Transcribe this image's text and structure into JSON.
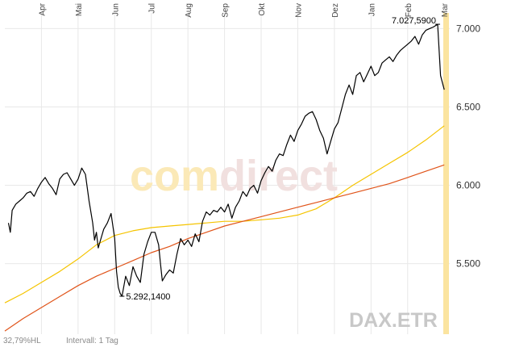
{
  "chart_data": {
    "type": "line",
    "symbol": "DAX.ETR",
    "watermark_parts": [
      "com",
      "direct"
    ],
    "footer_left": "32,79%HL",
    "footer_interval": "Intervall: 1 Tag",
    "ylim": [
      5050,
      7100
    ],
    "y_ticks": [
      "7.000",
      "6.500",
      "6.000",
      "5.500"
    ],
    "y_tick_values": [
      7000,
      6500,
      6000,
      5500
    ],
    "x_range": [
      0,
      12.15
    ],
    "months": [
      "Apr",
      "Mai",
      "Jun",
      "Jul",
      "Aug",
      "Sep",
      "Okt",
      "Nov",
      "Dez",
      "Jan",
      "Feb",
      "Mar"
    ],
    "month_positions": [
      1,
      2,
      3,
      4,
      5,
      6,
      7,
      8,
      9,
      10,
      11,
      12
    ],
    "grid": true,
    "annotations": [
      {
        "label": "7.027,5900",
        "x": 11.82,
        "y": 7027.59,
        "kind": "high"
      },
      {
        "label": "5.292,1400",
        "x": 3.2,
        "y": 5292.14,
        "kind": "low"
      }
    ],
    "series": [
      {
        "color": "#000000",
        "points": [
          [
            0.1,
            5760
          ],
          [
            0.15,
            5700
          ],
          [
            0.2,
            5840
          ],
          [
            0.3,
            5880
          ],
          [
            0.4,
            5900
          ],
          [
            0.5,
            5920
          ],
          [
            0.6,
            5950
          ],
          [
            0.7,
            5960
          ],
          [
            0.8,
            5930
          ],
          [
            0.9,
            5980
          ],
          [
            1.0,
            6020
          ],
          [
            1.1,
            6050
          ],
          [
            1.2,
            6010
          ],
          [
            1.3,
            5980
          ],
          [
            1.4,
            5940
          ],
          [
            1.5,
            6040
          ],
          [
            1.6,
            6070
          ],
          [
            1.7,
            6080
          ],
          [
            1.8,
            6040
          ],
          [
            1.9,
            6000
          ],
          [
            2.0,
            6040
          ],
          [
            2.1,
            6110
          ],
          [
            2.2,
            6070
          ],
          [
            2.3,
            5900
          ],
          [
            2.4,
            5760
          ],
          [
            2.45,
            5650
          ],
          [
            2.5,
            5700
          ],
          [
            2.55,
            5600
          ],
          [
            2.6,
            5640
          ],
          [
            2.7,
            5720
          ],
          [
            2.8,
            5760
          ],
          [
            2.9,
            5820
          ],
          [
            3.0,
            5660
          ],
          [
            3.05,
            5450
          ],
          [
            3.1,
            5350
          ],
          [
            3.15,
            5310
          ],
          [
            3.2,
            5292
          ],
          [
            3.3,
            5420
          ],
          [
            3.4,
            5360
          ],
          [
            3.5,
            5480
          ],
          [
            3.6,
            5420
          ],
          [
            3.7,
            5380
          ],
          [
            3.8,
            5560
          ],
          [
            3.9,
            5640
          ],
          [
            4.0,
            5700
          ],
          [
            4.1,
            5700
          ],
          [
            4.2,
            5620
          ],
          [
            4.25,
            5500
          ],
          [
            4.3,
            5390
          ],
          [
            4.4,
            5430
          ],
          [
            4.5,
            5460
          ],
          [
            4.6,
            5440
          ],
          [
            4.7,
            5560
          ],
          [
            4.8,
            5660
          ],
          [
            4.9,
            5620
          ],
          [
            5.0,
            5650
          ],
          [
            5.1,
            5610
          ],
          [
            5.2,
            5690
          ],
          [
            5.3,
            5640
          ],
          [
            5.4,
            5770
          ],
          [
            5.5,
            5830
          ],
          [
            5.6,
            5810
          ],
          [
            5.7,
            5840
          ],
          [
            5.8,
            5830
          ],
          [
            5.9,
            5860
          ],
          [
            6.0,
            5830
          ],
          [
            6.1,
            5880
          ],
          [
            6.2,
            5790
          ],
          [
            6.3,
            5860
          ],
          [
            6.4,
            5900
          ],
          [
            6.5,
            5960
          ],
          [
            6.6,
            5930
          ],
          [
            6.7,
            5980
          ],
          [
            6.8,
            6000
          ],
          [
            6.9,
            5950
          ],
          [
            7.0,
            6030
          ],
          [
            7.1,
            6080
          ],
          [
            7.2,
            6120
          ],
          [
            7.3,
            6090
          ],
          [
            7.4,
            6160
          ],
          [
            7.5,
            6200
          ],
          [
            7.6,
            6190
          ],
          [
            7.7,
            6260
          ],
          [
            7.8,
            6320
          ],
          [
            7.9,
            6280
          ],
          [
            8.0,
            6350
          ],
          [
            8.1,
            6390
          ],
          [
            8.2,
            6440
          ],
          [
            8.3,
            6460
          ],
          [
            8.4,
            6470
          ],
          [
            8.5,
            6420
          ],
          [
            8.6,
            6350
          ],
          [
            8.7,
            6300
          ],
          [
            8.8,
            6200
          ],
          [
            8.9,
            6280
          ],
          [
            9.0,
            6360
          ],
          [
            9.1,
            6400
          ],
          [
            9.2,
            6490
          ],
          [
            9.3,
            6580
          ],
          [
            9.4,
            6640
          ],
          [
            9.5,
            6580
          ],
          [
            9.6,
            6700
          ],
          [
            9.7,
            6720
          ],
          [
            9.8,
            6660
          ],
          [
            9.9,
            6710
          ],
          [
            10.0,
            6760
          ],
          [
            10.1,
            6700
          ],
          [
            10.2,
            6720
          ],
          [
            10.3,
            6780
          ],
          [
            10.4,
            6800
          ],
          [
            10.5,
            6820
          ],
          [
            10.6,
            6790
          ],
          [
            10.7,
            6830
          ],
          [
            10.8,
            6860
          ],
          [
            10.9,
            6880
          ],
          [
            11.0,
            6900
          ],
          [
            11.1,
            6920
          ],
          [
            11.2,
            6950
          ],
          [
            11.3,
            6900
          ],
          [
            11.4,
            6960
          ],
          [
            11.5,
            6990
          ],
          [
            11.6,
            7000
          ],
          [
            11.7,
            7010
          ],
          [
            11.82,
            7027.59
          ],
          [
            11.9,
            6700
          ],
          [
            12.0,
            6610
          ]
        ]
      },
      {
        "color": "#f5c400",
        "points": [
          [
            0,
            5250
          ],
          [
            0.5,
            5310
          ],
          [
            1.0,
            5380
          ],
          [
            1.5,
            5450
          ],
          [
            2.0,
            5530
          ],
          [
            2.5,
            5620
          ],
          [
            3.0,
            5680
          ],
          [
            3.5,
            5710
          ],
          [
            4.0,
            5730
          ],
          [
            4.5,
            5740
          ],
          [
            5.0,
            5750
          ],
          [
            5.5,
            5760
          ],
          [
            6.0,
            5770
          ],
          [
            6.5,
            5770
          ],
          [
            7.0,
            5780
          ],
          [
            7.5,
            5790
          ],
          [
            8.0,
            5810
          ],
          [
            8.5,
            5850
          ],
          [
            9.0,
            5920
          ],
          [
            9.5,
            6000
          ],
          [
            10.0,
            6070
          ],
          [
            10.5,
            6140
          ],
          [
            11.0,
            6210
          ],
          [
            11.5,
            6290
          ],
          [
            12.0,
            6380
          ]
        ]
      },
      {
        "color": "#e0541a",
        "points": [
          [
            0,
            5070
          ],
          [
            0.5,
            5150
          ],
          [
            1.0,
            5220
          ],
          [
            1.5,
            5290
          ],
          [
            2.0,
            5360
          ],
          [
            2.5,
            5420
          ],
          [
            3.0,
            5470
          ],
          [
            3.5,
            5520
          ],
          [
            4.0,
            5570
          ],
          [
            4.5,
            5610
          ],
          [
            5.0,
            5660
          ],
          [
            5.5,
            5700
          ],
          [
            6.0,
            5740
          ],
          [
            6.5,
            5770
          ],
          [
            7.0,
            5800
          ],
          [
            7.5,
            5830
          ],
          [
            8.0,
            5860
          ],
          [
            8.5,
            5890
          ],
          [
            9.0,
            5920
          ],
          [
            9.5,
            5950
          ],
          [
            10.0,
            5980
          ],
          [
            10.5,
            6010
          ],
          [
            11.0,
            6050
          ],
          [
            11.5,
            6090
          ],
          [
            12.0,
            6130
          ]
        ]
      }
    ]
  }
}
